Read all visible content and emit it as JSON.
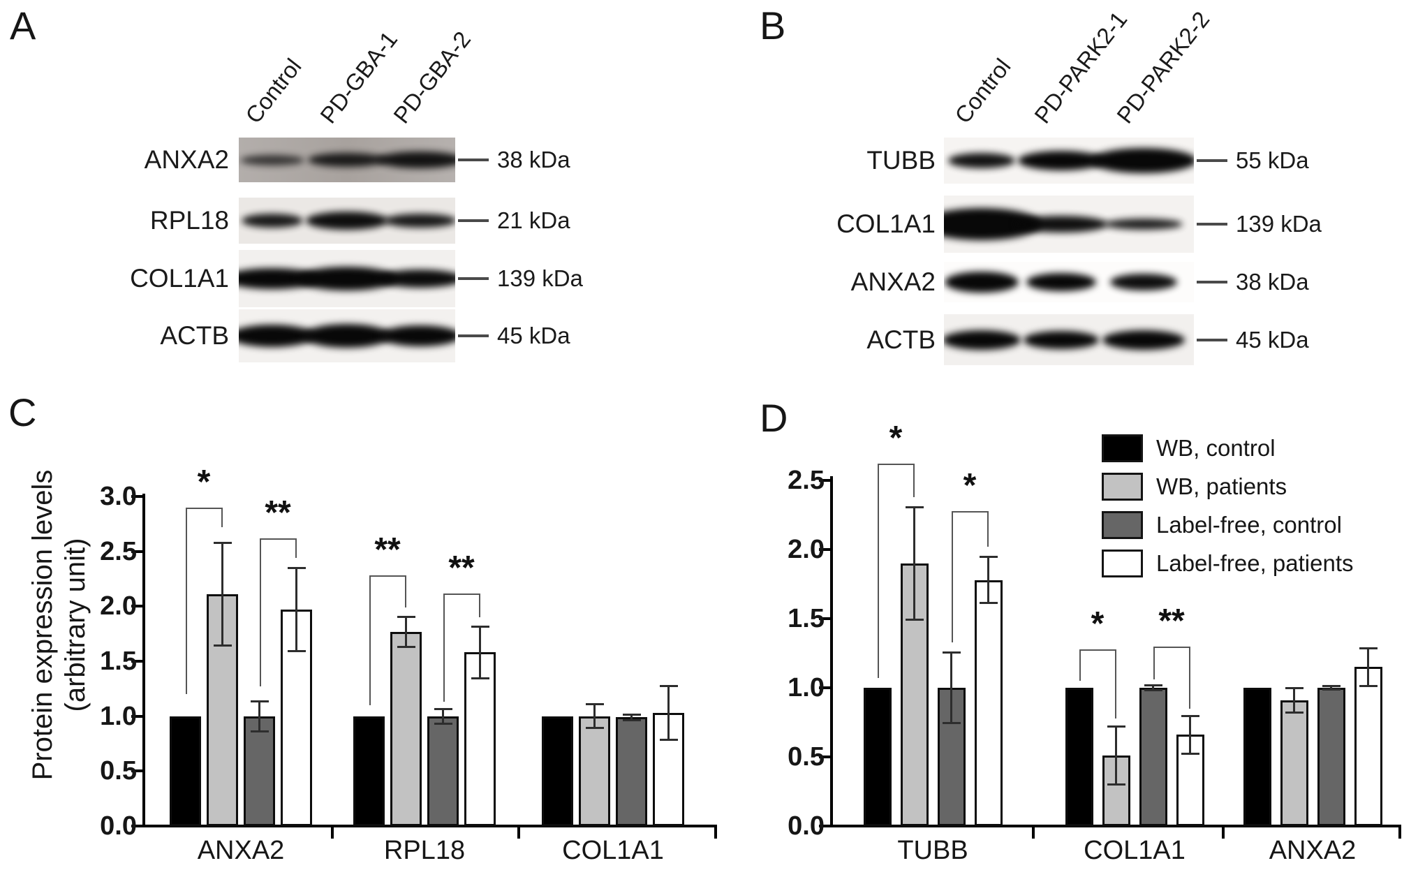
{
  "panels": {
    "A": {
      "label": "A",
      "lanes": [
        "Control",
        "PD-GBA-1",
        "PD-GBA-2"
      ],
      "rows": [
        {
          "protein": "ANXA2",
          "kda": "38 kDa",
          "bands": [
            [
              92,
              15,
              0.72
            ],
            [
              112,
              20,
              0.88
            ],
            [
              124,
              24,
              0.93
            ]
          ]
        },
        {
          "protein": "RPL18",
          "kda": "21 kDa",
          "bands": [
            [
              88,
              20,
              0.92
            ],
            [
              118,
              26,
              0.97
            ],
            [
              104,
              20,
              0.92
            ]
          ]
        },
        {
          "protein": "COL1A1",
          "kda": "139 kDa",
          "bands": [
            [
              138,
              30,
              1
            ],
            [
              144,
              34,
              1
            ],
            [
              122,
              26,
              0.98
            ]
          ]
        },
        {
          "protein": "ACTB",
          "kda": "45 kDa",
          "bands": [
            [
              122,
              32,
              1
            ],
            [
              126,
              34,
              1
            ],
            [
              116,
              30,
              1
            ]
          ]
        }
      ]
    },
    "B": {
      "label": "B",
      "lanes": [
        "Control",
        "PD-PARK2-1",
        "PD-PARK2-2"
      ],
      "rows": [
        {
          "protein": "TUBB",
          "kda": "55 kDa",
          "bands": [
            [
              96,
              22,
              0.95
            ],
            [
              124,
              28,
              1
            ],
            [
              152,
              36,
              1
            ]
          ]
        },
        {
          "protein": "COL1A1",
          "kda": "139 kDa",
          "bands": [
            [
              172,
              46,
              1
            ],
            [
              134,
              24,
              0.96
            ],
            [
              112,
              16,
              0.9
            ]
          ]
        },
        {
          "protein": "ANXA2",
          "kda": "38 kDa",
          "bands": [
            [
              106,
              30,
              1
            ],
            [
              100,
              26,
              1
            ],
            [
              96,
              24,
              0.97
            ]
          ]
        },
        {
          "protein": "ACTB",
          "kda": "45 kDa",
          "bands": [
            [
              112,
              28,
              1
            ],
            [
              108,
              26,
              1
            ],
            [
              118,
              28,
              1
            ]
          ]
        }
      ]
    },
    "C": {
      "label": "C"
    },
    "D": {
      "label": "D"
    }
  },
  "legend": {
    "items": [
      {
        "label": "WB, control",
        "color": "#000000"
      },
      {
        "label": "WB, patients",
        "color": "#c2c2c2"
      },
      {
        "label": "Label-free, control",
        "color": "#666666"
      },
      {
        "label": "Label-free, patients",
        "color": "#ffffff"
      }
    ]
  },
  "chart_data": [
    {
      "panel": "C",
      "type": "bar",
      "title": "",
      "xlabel": "",
      "ylabel_line1": "Protein expression levels",
      "ylabel_line2": "(arbitrary unit)",
      "ylim": [
        0,
        3.0
      ],
      "ytick_step": 0.5,
      "grid": false,
      "categories": [
        "ANXA2",
        "RPL18",
        "COL1A1"
      ],
      "series": [
        {
          "name": "WB, control",
          "color": "#000000",
          "values": [
            1.0,
            1.0,
            1.0
          ],
          "errors": [
            0,
            0,
            0
          ]
        },
        {
          "name": "WB, patients",
          "color": "#c2c2c2",
          "values": [
            2.11,
            1.77,
            1.0
          ],
          "errors": [
            0.47,
            0.14,
            0.11
          ]
        },
        {
          "name": "Label-free, control",
          "color": "#666666",
          "values": [
            1.0,
            1.0,
            0.99
          ],
          "errors": [
            0.14,
            0.07,
            0.03
          ]
        },
        {
          "name": "Label-free, patients",
          "color": "#ffffff",
          "values": [
            1.97,
            1.58,
            1.03
          ],
          "errors": [
            0.38,
            0.24,
            0.25
          ]
        }
      ],
      "significance": [
        {
          "category": 0,
          "from": 0,
          "to": 1,
          "label": "*",
          "bar_y": 2.9,
          "left_arm_y": 1.2,
          "right_arm_y": 2.72
        },
        {
          "category": 0,
          "from": 2,
          "to": 3,
          "label": "**",
          "bar_y": 2.62,
          "left_arm_y": 1.27,
          "right_arm_y": 2.44
        },
        {
          "category": 1,
          "from": 0,
          "to": 1,
          "label": "**",
          "bar_y": 2.28,
          "left_arm_y": 1.1,
          "right_arm_y": 1.99
        },
        {
          "category": 1,
          "from": 2,
          "to": 3,
          "label": "**",
          "bar_y": 2.12,
          "left_arm_y": 1.13,
          "right_arm_y": 1.9
        }
      ]
    },
    {
      "panel": "D",
      "type": "bar",
      "title": "",
      "xlabel": "",
      "ylim": [
        0,
        2.5
      ],
      "ytick_step": 0.5,
      "grid": false,
      "categories": [
        "TUBB",
        "COL1A1",
        "ANXA2"
      ],
      "series": [
        {
          "name": "WB, control",
          "color": "#000000",
          "values": [
            1.0,
            1.0,
            1.0
          ],
          "errors": [
            0,
            0,
            0
          ]
        },
        {
          "name": "WB, patients",
          "color": "#c2c2c2",
          "values": [
            1.9,
            0.51,
            0.91
          ],
          "errors": [
            0.41,
            0.21,
            0.09
          ]
        },
        {
          "name": "Label-free, control",
          "color": "#666666",
          "values": [
            1.0,
            1.0,
            1.0
          ],
          "errors": [
            0.26,
            0.02,
            0.015
          ]
        },
        {
          "name": "Label-free, patients",
          "color": "#ffffff",
          "values": [
            1.78,
            0.66,
            1.15
          ],
          "errors": [
            0.17,
            0.14,
            0.14
          ]
        }
      ],
      "significance": [
        {
          "category": 0,
          "from": 0,
          "to": 1,
          "label": "*",
          "bar_y": 2.62,
          "left_arm_y": 1.07,
          "right_arm_y": 2.38
        },
        {
          "category": 0,
          "from": 2,
          "to": 3,
          "label": "*",
          "bar_y": 2.28,
          "left_arm_y": 1.33,
          "right_arm_y": 2.02
        },
        {
          "category": 1,
          "from": 0,
          "to": 1,
          "label": "*",
          "bar_y": 1.28,
          "left_arm_y": 1.05,
          "right_arm_y": 0.78
        },
        {
          "category": 1,
          "from": 2,
          "to": 3,
          "label": "**",
          "bar_y": 1.3,
          "left_arm_y": 1.06,
          "right_arm_y": 0.85
        }
      ]
    }
  ]
}
